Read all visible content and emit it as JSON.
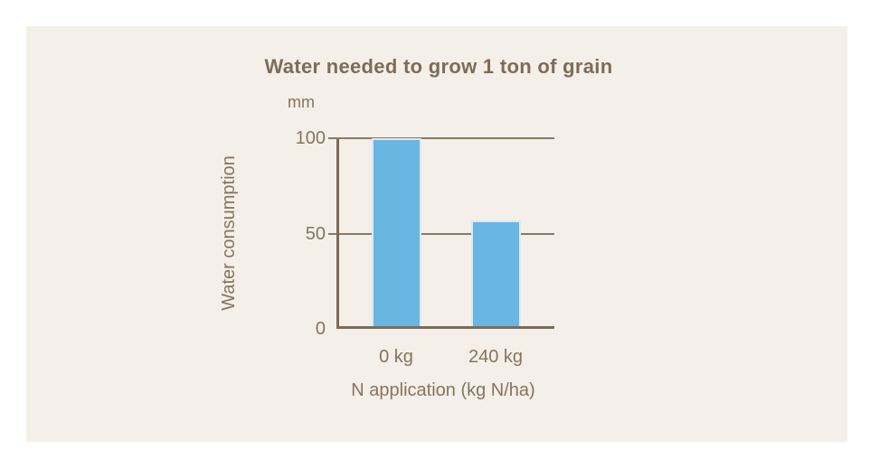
{
  "window": {
    "background": "#ffffff",
    "panel_background": "#f4efe9"
  },
  "chart_data": {
    "type": "bar",
    "title": "Water needed to grow 1 ton of grain",
    "unit_label": "mm",
    "ylabel": "Water consumption",
    "xlabel": "N application (kg N/ha)",
    "categories": [
      "0 kg",
      "240 kg"
    ],
    "values": [
      100,
      57
    ],
    "ylim": [
      0,
      100
    ],
    "yticks": [
      0,
      50,
      100
    ],
    "grid": "horizontal gridlines at 50 and 100, tick overhang left of axis",
    "legend": "none",
    "colors": {
      "bar": "#69b6e3",
      "bar_edge": "#d9eaf5",
      "axis": "#7c6c55",
      "gridline": "#8a7a64",
      "text": "#85755f",
      "title_text": "#7d6d56"
    }
  }
}
